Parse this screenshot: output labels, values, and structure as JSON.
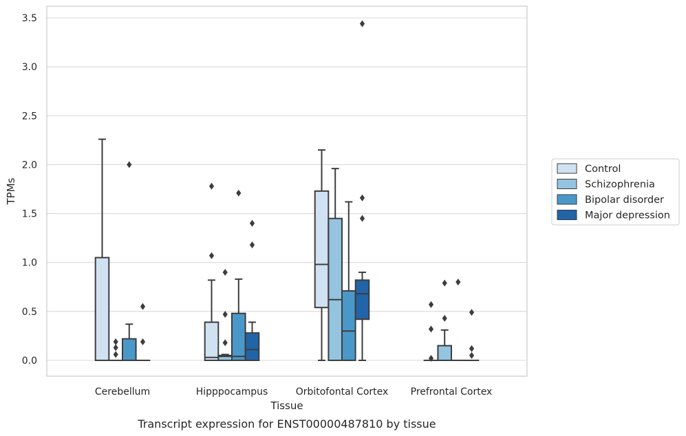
{
  "chart_data": {
    "type": "box",
    "caption": "Transcript expression for ENST00000487810 by tissue",
    "xlabel": "Tissue",
    "ylabel": "TPMs",
    "ylim": [
      -0.17,
      3.6
    ],
    "yticks": [
      "0.0",
      "0.5",
      "1.0",
      "1.5",
      "2.0",
      "2.5",
      "3.0",
      "3.5"
    ],
    "ytick_values": [
      0,
      0.5,
      1.0,
      1.5,
      2.0,
      2.5,
      3.0,
      3.5
    ],
    "grid": "horizontal",
    "legend_position": "right",
    "categories": [
      "Cerebellum",
      "Hipppocampus",
      "Orbitofontal Cortex",
      "Prefrontal Cortex"
    ],
    "series": [
      {
        "name": "Control",
        "color": "#d0e1f2",
        "boxes": [
          {
            "q1": 0.0,
            "median": 0.0,
            "q3": 1.05,
            "whisker_low": 0.0,
            "whisker_high": 2.26,
            "outliers": []
          },
          {
            "q1": 0.0,
            "median": 0.03,
            "q3": 0.39,
            "whisker_low": 0.0,
            "whisker_high": 0.82,
            "outliers": [
              1.07,
              1.78
            ]
          },
          {
            "q1": 0.54,
            "median": 0.98,
            "q3": 1.73,
            "whisker_low": 0.0,
            "whisker_high": 2.15,
            "outliers": []
          },
          {
            "q1": 0.0,
            "median": 0.0,
            "q3": 0.0,
            "whisker_low": 0.0,
            "whisker_high": 0.0,
            "outliers": [
              0.02,
              0.32,
              0.57
            ]
          }
        ]
      },
      {
        "name": "Schizophrenia",
        "color": "#94c4df",
        "boxes": [
          {
            "q1": 0.0,
            "median": 0.0,
            "q3": 0.0,
            "whisker_low": 0.0,
            "whisker_high": 0.0,
            "outliers": [
              0.06,
              0.13,
              0.19
            ]
          },
          {
            "q1": 0.0,
            "median": 0.04,
            "q3": 0.05,
            "whisker_low": 0.0,
            "whisker_high": 0.06,
            "outliers": [
              0.18,
              0.47,
              0.9
            ]
          },
          {
            "q1": 0.0,
            "median": 0.62,
            "q3": 1.45,
            "whisker_low": 0.0,
            "whisker_high": 1.96,
            "outliers": []
          },
          {
            "q1": 0.0,
            "median": 0.0,
            "q3": 0.15,
            "whisker_low": 0.0,
            "whisker_high": 0.31,
            "outliers": [
              0.43,
              0.79
            ]
          }
        ]
      },
      {
        "name": "Bipolar disorder",
        "color": "#4a98c9",
        "boxes": [
          {
            "q1": 0.0,
            "median": 0.0,
            "q3": 0.22,
            "whisker_low": 0.0,
            "whisker_high": 0.37,
            "outliers": [
              2.0
            ]
          },
          {
            "q1": 0.0,
            "median": 0.04,
            "q3": 0.48,
            "whisker_low": 0.0,
            "whisker_high": 0.83,
            "outliers": [
              1.71
            ]
          },
          {
            "q1": 0.0,
            "median": 0.3,
            "q3": 0.71,
            "whisker_low": 0.0,
            "whisker_high": 1.62,
            "outliers": []
          },
          {
            "q1": 0.0,
            "median": 0.0,
            "q3": 0.0,
            "whisker_low": 0.0,
            "whisker_high": 0.0,
            "outliers": [
              0.8
            ]
          }
        ]
      },
      {
        "name": "Major depression",
        "color": "#2264a8",
        "boxes": [
          {
            "q1": 0.0,
            "median": 0.0,
            "q3": 0.0,
            "whisker_low": 0.0,
            "whisker_high": 0.0,
            "outliers": [
              0.19,
              0.55
            ]
          },
          {
            "q1": 0.0,
            "median": 0.11,
            "q3": 0.28,
            "whisker_low": 0.0,
            "whisker_high": 0.39,
            "outliers": [
              1.18,
              1.4
            ]
          },
          {
            "q1": 0.42,
            "median": 0.68,
            "q3": 0.82,
            "whisker_low": 0.0,
            "whisker_high": 0.9,
            "outliers": [
              1.45,
              1.66,
              3.44
            ]
          },
          {
            "q1": 0.0,
            "median": 0.0,
            "q3": 0.0,
            "whisker_low": 0.0,
            "whisker_high": 0.0,
            "outliers": [
              0.05,
              0.12,
              0.49
            ]
          }
        ]
      }
    ]
  }
}
